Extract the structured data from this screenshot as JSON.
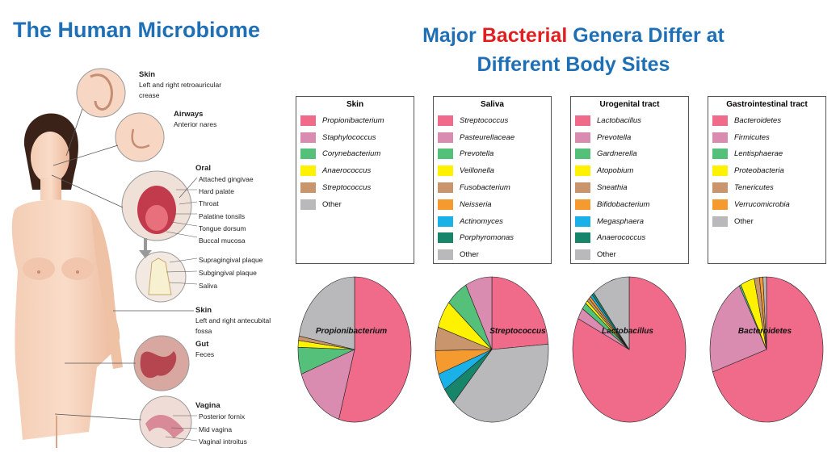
{
  "header": {
    "left_title": "The Human Microbiome",
    "right_title_part1": "Major ",
    "right_title_red": "Bacterial",
    "right_title_part2": " Genera  Differ at",
    "right_title_line2": "Different Body Sites"
  },
  "figure_labels": {
    "skin1_title": "Skin",
    "skin1_sub": "Left and right retroauricular crease",
    "airways_title": "Airways",
    "airways_sub": "Anterior nares",
    "oral_title": "Oral",
    "oral_items": [
      "Attached gingivae",
      "Hard palate",
      "Throat",
      "Palatine tonsils",
      "Tongue dorsum",
      "Buccal mucosa"
    ],
    "plaque_items": [
      "Supragingival plaque",
      "Subgingival plaque",
      "Saliva"
    ],
    "skin2_title": "Skin",
    "skin2_sub": "Left and right antecubital fossa",
    "gut_title": "Gut",
    "gut_sub": "Feces",
    "vagina_title": "Vagina",
    "vagina_items": [
      "Posterior fornix",
      "Mid vagina",
      "Vaginal introitus"
    ]
  },
  "colors": {
    "pink": "#f06a8a",
    "mauve": "#d98cb0",
    "green": "#55c07a",
    "yellow": "#fff200",
    "tan": "#c9956c",
    "orange": "#f59a2f",
    "blue": "#1ab0e8",
    "teal": "#16856a",
    "grey": "#b9b9bb"
  },
  "legends": [
    {
      "title": "Skin",
      "items": [
        {
          "label": "Propionibacterium",
          "color": "#f06a8a"
        },
        {
          "label": "Staphylococcus",
          "color": "#d98cb0"
        },
        {
          "label": "Corynebacterium",
          "color": "#55c07a"
        },
        {
          "label": "Anaerococcus",
          "color": "#fff200"
        },
        {
          "label": "Streptococcus",
          "color": "#c9956c"
        },
        {
          "label": "Other",
          "color": "#b9b9bb"
        }
      ]
    },
    {
      "title": "Saliva",
      "items": [
        {
          "label": "Streptococcus",
          "color": "#f06a8a"
        },
        {
          "label": "Pasteurellaceae",
          "color": "#d98cb0"
        },
        {
          "label": "Prevotella",
          "color": "#55c07a"
        },
        {
          "label": "Veillonella",
          "color": "#fff200"
        },
        {
          "label": "Fusobacterium",
          "color": "#c9956c"
        },
        {
          "label": "Neisseria",
          "color": "#f59a2f"
        },
        {
          "label": "Actinomyces",
          "color": "#1ab0e8"
        },
        {
          "label": "Porphyromonas",
          "color": "#16856a"
        },
        {
          "label": "Other",
          "color": "#b9b9bb"
        }
      ]
    },
    {
      "title": "Urogenital tract",
      "items": [
        {
          "label": "Lactobacillus",
          "color": "#f06a8a"
        },
        {
          "label": "Prevotella",
          "color": "#d98cb0"
        },
        {
          "label": "Gardnerella",
          "color": "#55c07a"
        },
        {
          "label": "Atopobium",
          "color": "#fff200"
        },
        {
          "label": "Sneathia",
          "color": "#c9956c"
        },
        {
          "label": "Bifidobacterium",
          "color": "#f59a2f"
        },
        {
          "label": "Megasphaera",
          "color": "#1ab0e8"
        },
        {
          "label": "Anaerococcus",
          "color": "#16856a"
        },
        {
          "label": "Other",
          "color": "#b9b9bb"
        }
      ]
    },
    {
      "title": "Gastrointestinal tract",
      "items": [
        {
          "label": "Bacteroidetes",
          "color": "#f06a8a"
        },
        {
          "label": "Firmicutes",
          "color": "#d98cb0"
        },
        {
          "label": "Lentisphaerae",
          "color": "#55c07a"
        },
        {
          "label": "Proteobacteria",
          "color": "#fff200"
        },
        {
          "label": "Tenericutes",
          "color": "#c9956c"
        },
        {
          "label": "Verrucomicrobia",
          "color": "#f59a2f"
        },
        {
          "label": "Other",
          "color": "#b9b9bb"
        }
      ]
    }
  ],
  "pies": [
    {
      "label": "Propionibacterium",
      "slices": [
        {
          "name": "Propionibacterium",
          "value": 54.5,
          "color": "#f06a8a"
        },
        {
          "name": "Staphylococcus",
          "value": 15,
          "color": "#d98cb0"
        },
        {
          "name": "Corynebacterium",
          "value": 6,
          "color": "#55c07a"
        },
        {
          "name": "Anaerococcus",
          "value": 1.5,
          "color": "#fff200"
        },
        {
          "name": "Streptococcus",
          "value": 1,
          "color": "#c9956c"
        },
        {
          "name": "Other",
          "value": 22,
          "color": "#b9b9bb"
        }
      ]
    },
    {
      "label": "Streptococcus",
      "slices": [
        {
          "name": "Streptococcus",
          "value": 25,
          "color": "#f06a8a"
        },
        {
          "name": "Other",
          "value": 40,
          "color": "#b9b9bb"
        },
        {
          "name": "Porphyromonas",
          "value": 4,
          "color": "#16856a"
        },
        {
          "name": "Actinomyces",
          "value": 4,
          "color": "#1ab0e8"
        },
        {
          "name": "Neisseria",
          "value": 5.5,
          "color": "#f59a2f"
        },
        {
          "name": "Fusobacterium",
          "value": 5.5,
          "color": "#c9956c"
        },
        {
          "name": "Veillonella",
          "value": 6.5,
          "color": "#fff200"
        },
        {
          "name": "Prevotella",
          "value": 6.5,
          "color": "#55c07a"
        },
        {
          "name": "Pasteurellaceae",
          "value": 8,
          "color": "#d98cb0"
        }
      ]
    },
    {
      "label": "Lactobacillus",
      "slices": [
        {
          "name": "Lactobacillus",
          "value": 82,
          "color": "#f06a8a"
        },
        {
          "name": "Prevotella",
          "value": 2.5,
          "color": "#d98cb0"
        },
        {
          "name": "Gardnerella",
          "value": 1.5,
          "color": "#55c07a"
        },
        {
          "name": "Atopobium",
          "value": 0.7,
          "color": "#fff200"
        },
        {
          "name": "Sneathia",
          "value": 0.7,
          "color": "#c9956c"
        },
        {
          "name": "Bifidobacterium",
          "value": 0.6,
          "color": "#f59a2f"
        },
        {
          "name": "Megasphaera",
          "value": 0.6,
          "color": "#1ab0e8"
        },
        {
          "name": "Anaerococcus",
          "value": 0.6,
          "color": "#16856a"
        },
        {
          "name": "Other",
          "value": 10.8,
          "color": "#b9b9bb"
        }
      ]
    },
    {
      "label": "Bacteroidetes",
      "slices": [
        {
          "name": "Bacteroidetes",
          "value": 70,
          "color": "#f06a8a"
        },
        {
          "name": "Firmicutes",
          "value": 22,
          "color": "#d98cb0"
        },
        {
          "name": "Lentisphaerae",
          "value": 0.5,
          "color": "#55c07a"
        },
        {
          "name": "Proteobacteria",
          "value": 4,
          "color": "#fff200"
        },
        {
          "name": "Tenericutes",
          "value": 1.5,
          "color": "#c9956c"
        },
        {
          "name": "Verrucomicrobia",
          "value": 1,
          "color": "#f59a2f"
        },
        {
          "name": "Other",
          "value": 1,
          "color": "#b9b9bb"
        }
      ]
    }
  ]
}
